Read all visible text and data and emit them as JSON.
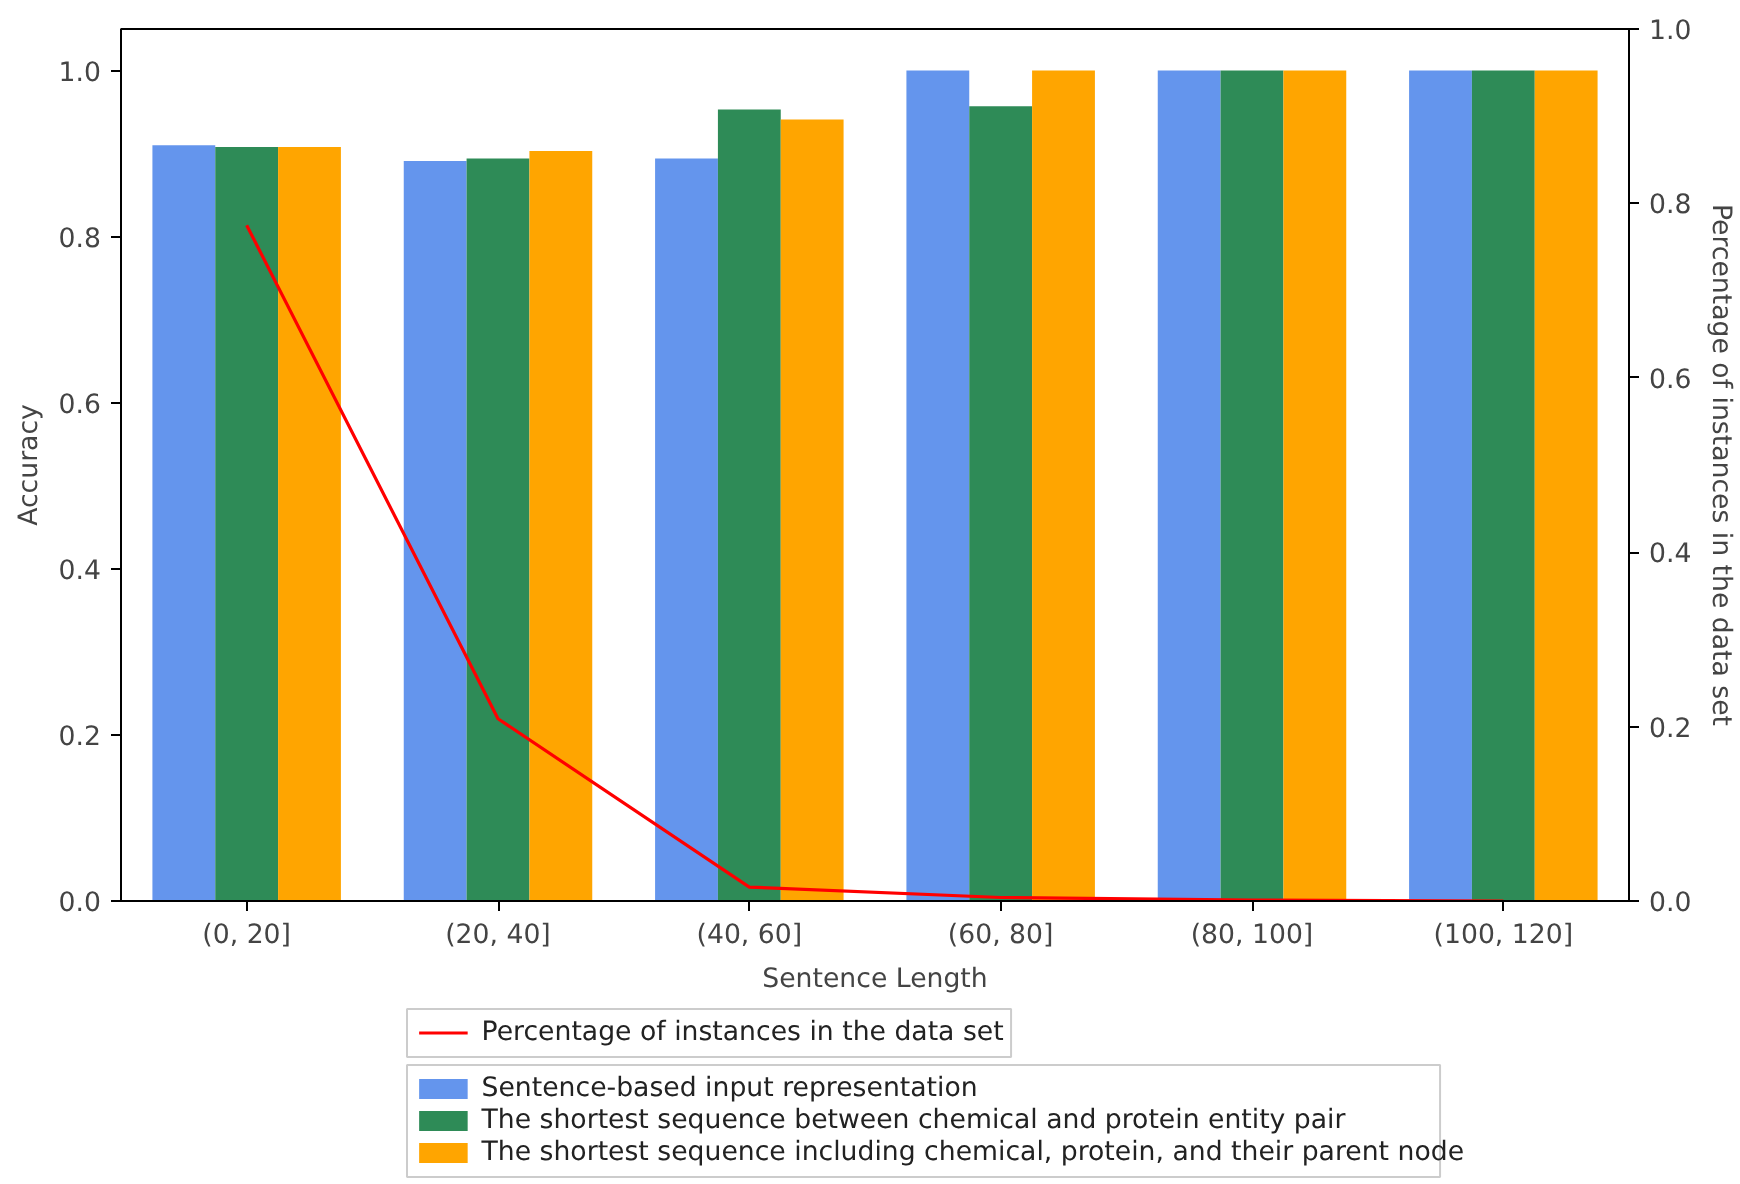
{
  "chart_data": {
    "type": "bar",
    "xlabel": "Sentence Length",
    "ylabel": "Accuracy",
    "y2label": "Percentage of instances in the data set",
    "categories": [
      "(0, 20]",
      "(20, 40]",
      "(40, 60]",
      "(60, 80]",
      "(80, 100]",
      "(100, 120]"
    ],
    "series": [
      {
        "name": "Percentage of instances in the data set",
        "type": "line",
        "axis": "y2",
        "color": "#ff0000",
        "values": [
          0.775,
          0.209,
          0.016,
          0.004,
          0.001,
          0.0
        ]
      },
      {
        "name": "Sentence-based input representation",
        "color": "#6495ed",
        "values": [
          0.91,
          0.891,
          0.894,
          1.0,
          1.0,
          1.0
        ]
      },
      {
        "name": "The shortest sequence between chemical and protein entity pair",
        "color": "#2e8b57",
        "values": [
          0.908,
          0.894,
          0.953,
          0.957,
          1.0,
          1.0
        ]
      },
      {
        "name": "The shortest sequence including chemical, protein, and their parent node",
        "color": "#ffa500",
        "values": [
          0.908,
          0.903,
          0.941,
          1.0,
          1.0,
          1.0
        ]
      }
    ],
    "ylim": [
      0,
      1.05
    ],
    "yticks": [
      {
        "value": 0,
        "label": "0.0"
      },
      {
        "value": 0.2,
        "label": "0.2"
      },
      {
        "value": 0.4,
        "label": "0.4"
      },
      {
        "value": 0.6,
        "label": "0.6"
      },
      {
        "value": 0.8,
        "label": "0.8"
      },
      {
        "value": 1.0,
        "label": "1.0"
      }
    ],
    "y2lim": [
      0,
      1.0
    ],
    "y2ticks": [
      {
        "value": 0,
        "label": "0.0"
      },
      {
        "value": 0.2,
        "label": "0.2"
      },
      {
        "value": 0.4,
        "label": "0.4"
      },
      {
        "value": 0.6,
        "label": "0.6"
      },
      {
        "value": 0.8,
        "label": "0.8"
      },
      {
        "value": 1.0,
        "label": "1.0"
      }
    ],
    "grid": false,
    "legend": "bottom",
    "marker": "none"
  }
}
